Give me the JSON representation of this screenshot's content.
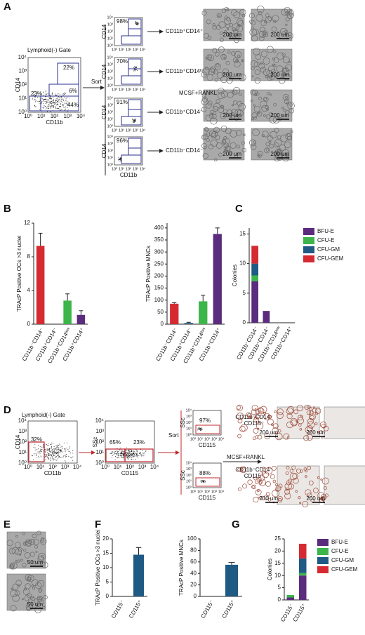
{
  "chart_data": [
    {
      "type": "bar",
      "y_label": "TRAcP Positive OCs >3 nuclei",
      "categories": [
        "CD11b⁻CD14⁻",
        "CD11b⁺CD14⁻",
        "CD11b⁺CD14ˡᵒʷ",
        "CD11b⁺CD14⁺"
      ],
      "values": [
        9.3,
        0,
        2.8,
        1.1
      ],
      "errors": [
        1.5,
        0,
        0.8,
        0.5
      ],
      "colors": [
        "#d62a32",
        "#1f5a85",
        "#3cb54a",
        "#5b2c7e"
      ],
      "ylim": [
        0,
        12
      ],
      "yticks": [
        0,
        4,
        8,
        12
      ]
    },
    {
      "type": "bar",
      "y_label": "TRAcP Positive MNCs",
      "categories": [
        "CD11b⁻CD14⁻",
        "CD11b⁺CD14⁻",
        "CD11b⁺CD14ˡᵒʷ",
        "CD11b⁺CD14⁺"
      ],
      "values": [
        85,
        5,
        95,
        375
      ],
      "errors": [
        4,
        3,
        25,
        25
      ],
      "colors": [
        "#d62a32",
        "#1f5a85",
        "#3cb54a",
        "#5b2c7e"
      ],
      "ylim": [
        0,
        420
      ],
      "yticks": [
        0,
        50,
        100,
        150,
        200,
        250,
        300,
        350,
        400
      ]
    },
    {
      "type": "stacked_bar",
      "y_label": "Colonies",
      "categories": [
        "CD11b⁻CD14⁻",
        "CD11b⁺CD14⁻",
        "CD11b⁺CD14ˡᵒʷ",
        "CD11b⁺CD14⁺"
      ],
      "series": [
        {
          "name": "BFU-E",
          "color": "#5b2c7e",
          "values": [
            7,
            2,
            0,
            0
          ]
        },
        {
          "name": "CFU-E",
          "color": "#3cb54a",
          "values": [
            1,
            0,
            0,
            0
          ]
        },
        {
          "name": "CFU-GM",
          "color": "#1f5a85",
          "values": [
            2,
            0,
            0,
            0
          ]
        },
        {
          "name": "CFU-GEM",
          "color": "#d62a32",
          "values": [
            3,
            0,
            0,
            0
          ]
        }
      ],
      "ylim": [
        0,
        16
      ],
      "yticks": [
        0,
        5,
        10,
        15
      ]
    },
    {
      "type": "bar",
      "y_label": "TRAcP Positive OCs >3 nuclei",
      "categories": [
        "CD115⁻",
        "CD115⁺"
      ],
      "values": [
        0,
        14.5
      ],
      "errors": [
        0,
        2.5
      ],
      "colors": [
        "#1f5a85",
        "#1f5a85"
      ],
      "ylim": [
        0,
        20
      ],
      "yticks": [
        0,
        5,
        10,
        15,
        20
      ]
    },
    {
      "type": "bar",
      "y_label": "TRAcP Positive MNCs",
      "categories": [
        "CD115⁻",
        "CD115⁺"
      ],
      "values": [
        0,
        55
      ],
      "errors": [
        0,
        4
      ],
      "colors": [
        "#1f5a85",
        "#1f5a85"
      ],
      "ylim": [
        0,
        100
      ],
      "yticks": [
        0,
        20,
        40,
        60,
        80,
        100
      ]
    },
    {
      "type": "stacked_bar",
      "y_label": "Colonies",
      "categories": [
        "CD115⁻",
        "CD115⁺"
      ],
      "series": [
        {
          "name": "BFU-E",
          "color": "#5b2c7e",
          "values": [
            1,
            10
          ]
        },
        {
          "name": "CFU-E",
          "color": "#3cb54a",
          "values": [
            1,
            1
          ]
        },
        {
          "name": "CFU-GM",
          "color": "#1f5a85",
          "values": [
            0,
            6
          ]
        },
        {
          "name": "CFU-GEM",
          "color": "#d62a32",
          "values": [
            0,
            6
          ]
        }
      ],
      "ylim": [
        0,
        25
      ],
      "yticks": [
        0,
        5,
        10,
        15,
        20,
        25
      ]
    }
  ],
  "letters": [
    "A",
    "B",
    "C",
    "D",
    "E",
    "F",
    "G"
  ],
  "decades": [
    "10⁰",
    "10¹",
    "10²",
    "10³",
    "10⁴"
  ],
  "panel_a": {
    "gate": "Lymphoid(-) Gate",
    "x_label": "CD11b",
    "y_label": "CD14",
    "pcts": [
      "22%",
      "6%",
      "44%",
      "23%"
    ],
    "sort": "Sort",
    "treatment": "MCSF+RANKL",
    "scale": "200 um",
    "subsets": [
      {
        "pct": "98%",
        "label": "CD11b⁺CD14⁺"
      },
      {
        "pct": "70%",
        "label": "CD11b⁺CD14ˡᵒʷ"
      },
      {
        "pct": "91%",
        "label": "CD11b⁺CD14⁻"
      },
      {
        "pct": "96%",
        "label": "CD11b⁻CD14⁻"
      }
    ]
  },
  "panel_d": {
    "gate": "Lymphoid(-) Gate",
    "x_label": "CD11b",
    "y_label": "CD14",
    "x_label2": "CD115",
    "y_label2": "SSc",
    "pct_left": "32%",
    "pcts": [
      "65%",
      "23%"
    ],
    "sort": "Sort",
    "treatment": "MCSF+RANKL",
    "scale": "200 um",
    "subsets": [
      {
        "pct": "97%",
        "label": [
          "CD11b⁻CD14⁻",
          "CD115⁻"
        ]
      },
      {
        "pct": "88%",
        "label": [
          "CD11b⁻CD14⁻",
          "CD115⁺"
        ]
      }
    ]
  },
  "panel_e": {
    "scale": "50 um"
  }
}
